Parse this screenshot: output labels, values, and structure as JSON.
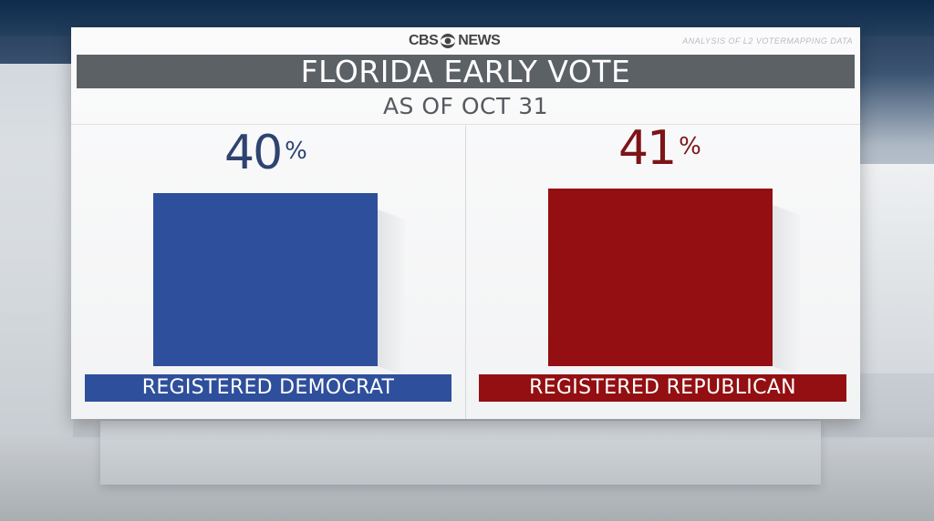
{
  "header": {
    "brand": "CBS NEWS",
    "brand_left": "CBS",
    "brand_right": "NEWS",
    "source": "ANALYSIS OF L2 VOTERMAPPING DATA",
    "title": "FLORIDA EARLY VOTE",
    "subtitle": "AS OF OCT 31"
  },
  "colors": {
    "democrat": "#2e4f9c",
    "republican": "#930f12",
    "title_bar": "#5c6166"
  },
  "chart_data": {
    "type": "bar",
    "title": "FLORIDA EARLY VOTE",
    "subtitle": "AS OF OCT 31",
    "categories": [
      "REGISTERED DEMOCRAT",
      "REGISTERED REPUBLICAN"
    ],
    "values": [
      40,
      41
    ],
    "value_labels": [
      "40",
      "41"
    ],
    "unit": "%",
    "ylim": [
      0,
      80
    ],
    "grid": false,
    "legend": "none"
  }
}
